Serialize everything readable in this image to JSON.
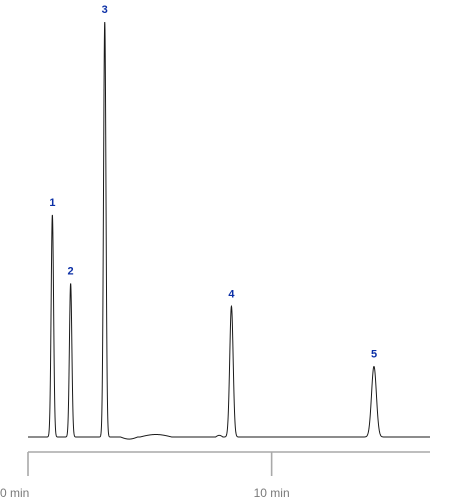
{
  "chart_data": {
    "type": "line",
    "title": "",
    "xlabel": "",
    "ylabel": "",
    "x_unit": "min",
    "xlim": [
      0,
      16.5
    ],
    "ylim": [
      0,
      100
    ],
    "grid": false,
    "legend": "none",
    "x_ticks": [
      {
        "value": 0,
        "label": "0 min"
      },
      {
        "value": 10,
        "label": "10 min"
      }
    ],
    "peaks": [
      {
        "label": "1",
        "time": 1.0,
        "height": 53.5,
        "width": 0.05
      },
      {
        "label": "2",
        "time": 1.75,
        "height": 37.0,
        "width": 0.05
      },
      {
        "label": "3",
        "time": 3.15,
        "height": 100.0,
        "width": 0.05
      },
      {
        "label": "4",
        "time": 8.35,
        "height": 31.5,
        "width": 0.07
      },
      {
        "label": "5",
        "time": 14.2,
        "height": 17.0,
        "width": 0.1
      }
    ],
    "baseline_features": [
      {
        "start": 3.8,
        "end": 4.5,
        "height": -0.5
      },
      {
        "start": 4.6,
        "end": 5.9,
        "height": 0.6
      },
      {
        "start": 7.7,
        "end": 8.0,
        "height": 0.4
      }
    ],
    "colors": {
      "trace": "#1a1a1a",
      "peak_labels": "#0b2fa6",
      "axis": "#a9a9a9",
      "tick_labels": "#7a7a7a"
    }
  }
}
